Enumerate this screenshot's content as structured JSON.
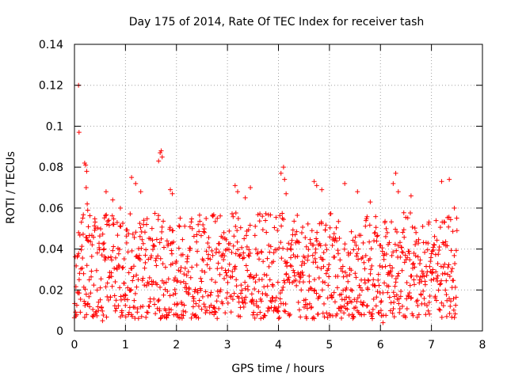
{
  "chart_data": {
    "type": "scatter",
    "title": "Day 175 of 2014, Rate Of TEC Index for receiver tash",
    "xlabel": "GPS time / hours",
    "ylabel": "ROTI / TECUs",
    "xlim": [
      0,
      8
    ],
    "ylim": [
      0,
      0.14
    ],
    "xticks": [
      0,
      1,
      2,
      3,
      4,
      5,
      6,
      7,
      8
    ],
    "xtick_labels": [
      "0",
      "1",
      "2",
      "3",
      "4",
      "5",
      "6",
      "7",
      "8"
    ],
    "yticks": [
      0,
      0.02,
      0.04,
      0.06,
      0.08,
      0.1,
      0.12,
      0.14
    ],
    "ytick_labels": [
      "0",
      "0.02",
      "0.04",
      "0.06",
      "0.08",
      "0.1",
      "0.12",
      "0.14"
    ],
    "grid": true,
    "marker": "+",
    "color": "#ff0000",
    "x_range_of_data": [
      0,
      7.5
    ],
    "series": [
      {
        "name": "ROTI",
        "points": [
          [
            0.08,
            0.12
          ],
          [
            0.09,
            0.097
          ],
          [
            0.2,
            0.082
          ],
          [
            0.22,
            0.081
          ],
          [
            0.24,
            0.078
          ],
          [
            0.23,
            0.07
          ],
          [
            0.25,
            0.062
          ],
          [
            0.26,
            0.059
          ],
          [
            0.62,
            0.068
          ],
          [
            0.75,
            0.064
          ],
          [
            0.9,
            0.06
          ],
          [
            1.12,
            0.075
          ],
          [
            1.2,
            0.072
          ],
          [
            1.3,
            0.068
          ],
          [
            1.65,
            0.083
          ],
          [
            1.68,
            0.087
          ],
          [
            1.7,
            0.088
          ],
          [
            1.72,
            0.085
          ],
          [
            1.88,
            0.069
          ],
          [
            1.92,
            0.067
          ],
          [
            2.4,
            0.047
          ],
          [
            2.8,
            0.055
          ],
          [
            3.15,
            0.071
          ],
          [
            3.2,
            0.068
          ],
          [
            3.35,
            0.065
          ],
          [
            3.45,
            0.07
          ],
          [
            4.05,
            0.077
          ],
          [
            4.1,
            0.08
          ],
          [
            4.12,
            0.074
          ],
          [
            4.15,
            0.067
          ],
          [
            4.7,
            0.073
          ],
          [
            4.75,
            0.071
          ],
          [
            4.85,
            0.069
          ],
          [
            5.3,
            0.072
          ],
          [
            5.55,
            0.068
          ],
          [
            5.8,
            0.063
          ],
          [
            6.25,
            0.072
          ],
          [
            6.3,
            0.077
          ],
          [
            6.35,
            0.068
          ],
          [
            6.6,
            0.066
          ],
          [
            7.2,
            0.073
          ],
          [
            7.35,
            0.074
          ],
          [
            7.45,
            0.06
          ],
          [
            7.5,
            0.049
          ],
          [
            6.05,
            0.004
          ],
          [
            0.55,
            0.005
          ],
          [
            4.7,
            0.006
          ],
          [
            3.25,
            0.007
          ],
          [
            2.1,
            0.008
          ],
          [
            7.3,
            0.007
          ]
        ],
        "generated_cloud": {
          "seed": 175,
          "step_hours": 0.006,
          "x_start": 0,
          "x_end": 7.5,
          "base_band": [
            0.006,
            0.045
          ],
          "upper_band": [
            0.045,
            0.058
          ]
        }
      }
    ]
  }
}
